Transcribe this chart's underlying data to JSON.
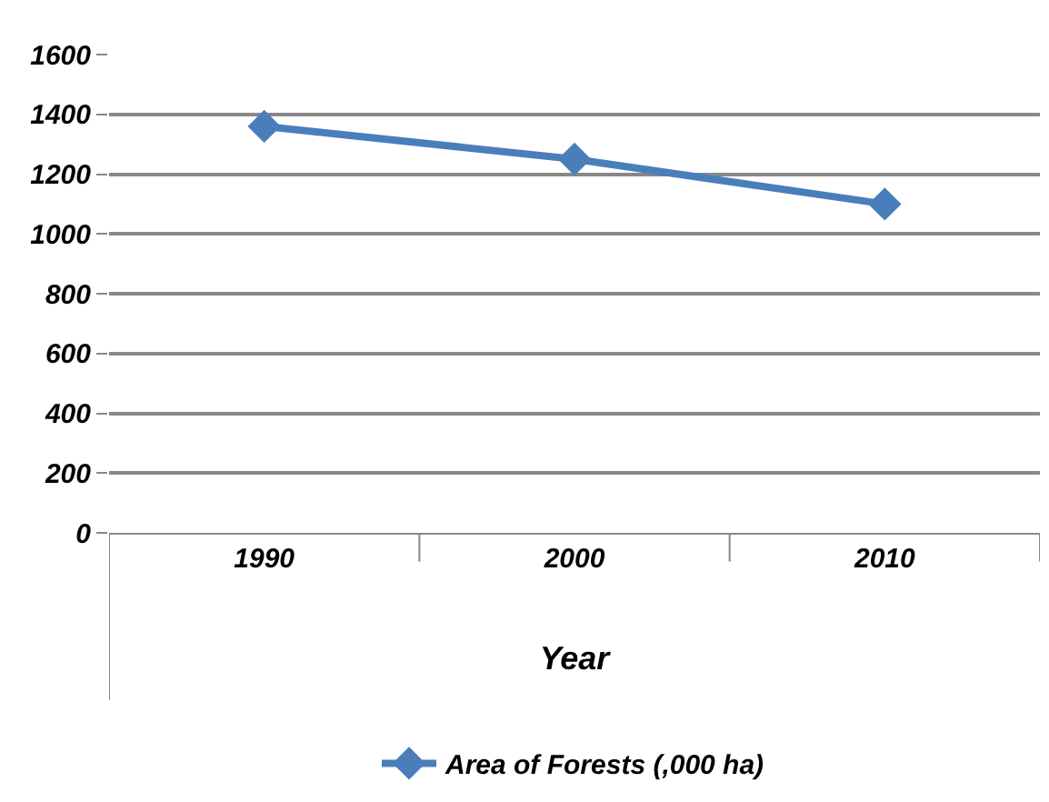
{
  "chart_data": {
    "type": "line",
    "xlabel": "Year",
    "categories": [
      "1990",
      "2000",
      "2010"
    ],
    "series": [
      {
        "name": "Area of Forests (,000 ha)",
        "color": "#4a7ebb",
        "values": [
          1360,
          1250,
          1100
        ]
      }
    ],
    "ylim": [
      0,
      1600
    ],
    "yticks": [
      0,
      200,
      400,
      600,
      800,
      1000,
      1200,
      1400,
      1600
    ],
    "grid": "y",
    "legend": "bottom",
    "marker": "diamond",
    "line_style": "solid"
  }
}
